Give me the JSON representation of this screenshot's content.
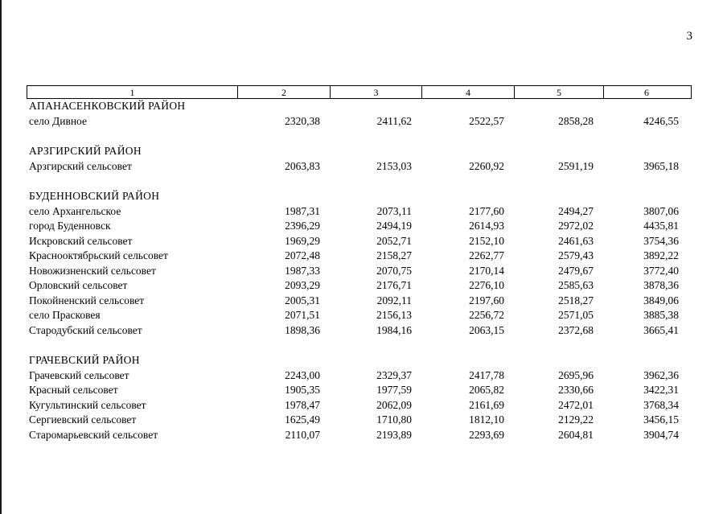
{
  "page": {
    "number": "3"
  },
  "table": {
    "column_headers": [
      "1",
      "2",
      "3",
      "4",
      "5",
      "6"
    ],
    "sections": [
      {
        "title": "АПАНАСЕНКОВСКИЙ РАЙОН",
        "rows": [
          {
            "name": "село Дивное",
            "values": [
              "2320,38",
              "2411,62",
              "2522,57",
              "2858,28",
              "4246,55"
            ]
          }
        ]
      },
      {
        "title": "АРЗГИРСКИЙ РАЙОН",
        "rows": [
          {
            "name": "Арзгирский сельсовет",
            "values": [
              "2063,83",
              "2153,03",
              "2260,92",
              "2591,19",
              "3965,18"
            ]
          }
        ]
      },
      {
        "title": "БУДЕННОВСКИЙ РАЙОН",
        "rows": [
          {
            "name": "село Архангельское",
            "values": [
              "1987,31",
              "2073,11",
              "2177,60",
              "2494,27",
              "3807,06"
            ]
          },
          {
            "name": "город Буденновск",
            "values": [
              "2396,29",
              "2494,19",
              "2614,93",
              "2972,02",
              "4435,81"
            ]
          },
          {
            "name": "Искровский сельсовет",
            "values": [
              "1969,29",
              "2052,71",
              "2152,10",
              "2461,63",
              "3754,36"
            ]
          },
          {
            "name": "Краснооктябрьский сельсовет",
            "values": [
              "2072,48",
              "2158,27",
              "2262,77",
              "2579,43",
              "3892,22"
            ]
          },
          {
            "name": "Новожизненский сельсовет",
            "values": [
              "1987,33",
              "2070,75",
              "2170,14",
              "2479,67",
              "3772,40"
            ]
          },
          {
            "name": "Орловский сельсовет",
            "values": [
              "2093,29",
              "2176,71",
              "2276,10",
              "2585,63",
              "3878,36"
            ]
          },
          {
            "name": "Покойненский сельсовет",
            "values": [
              "2005,31",
              "2092,11",
              "2197,60",
              "2518,27",
              "3849,06"
            ]
          },
          {
            "name": "село Прасковея",
            "values": [
              "2071,51",
              "2156,13",
              "2256,72",
              "2571,05",
              "3885,38"
            ]
          },
          {
            "name": "Стародубский сельсовет",
            "values": [
              "1898,36",
              "1984,16",
              "2063,15",
              "2372,68",
              "3665,41"
            ]
          }
        ]
      },
      {
        "title": "ГРАЧЕВСКИЙ РАЙОН",
        "rows": [
          {
            "name": "Грачевский сельсовет",
            "values": [
              "2243,00",
              "2329,37",
              "2417,78",
              "2695,96",
              "3962,36"
            ]
          },
          {
            "name": "Красный сельсовет",
            "values": [
              "1905,35",
              "1977,59",
              "2065,82",
              "2330,66",
              "3422,31"
            ]
          },
          {
            "name": "Кугультинский сельсовет",
            "values": [
              "1978,47",
              "2062,09",
              "2161,69",
              "2472,01",
              "3768,34"
            ]
          },
          {
            "name": "Сергиевский сельсовет",
            "values": [
              "1625,49",
              "1710,80",
              "1812,10",
              "2129,22",
              "3456,15"
            ]
          },
          {
            "name": "Старомарьевский сельсовет",
            "values": [
              "2110,07",
              "2193,89",
              "2293,69",
              "2604,81",
              "3904,74"
            ]
          }
        ]
      }
    ]
  }
}
